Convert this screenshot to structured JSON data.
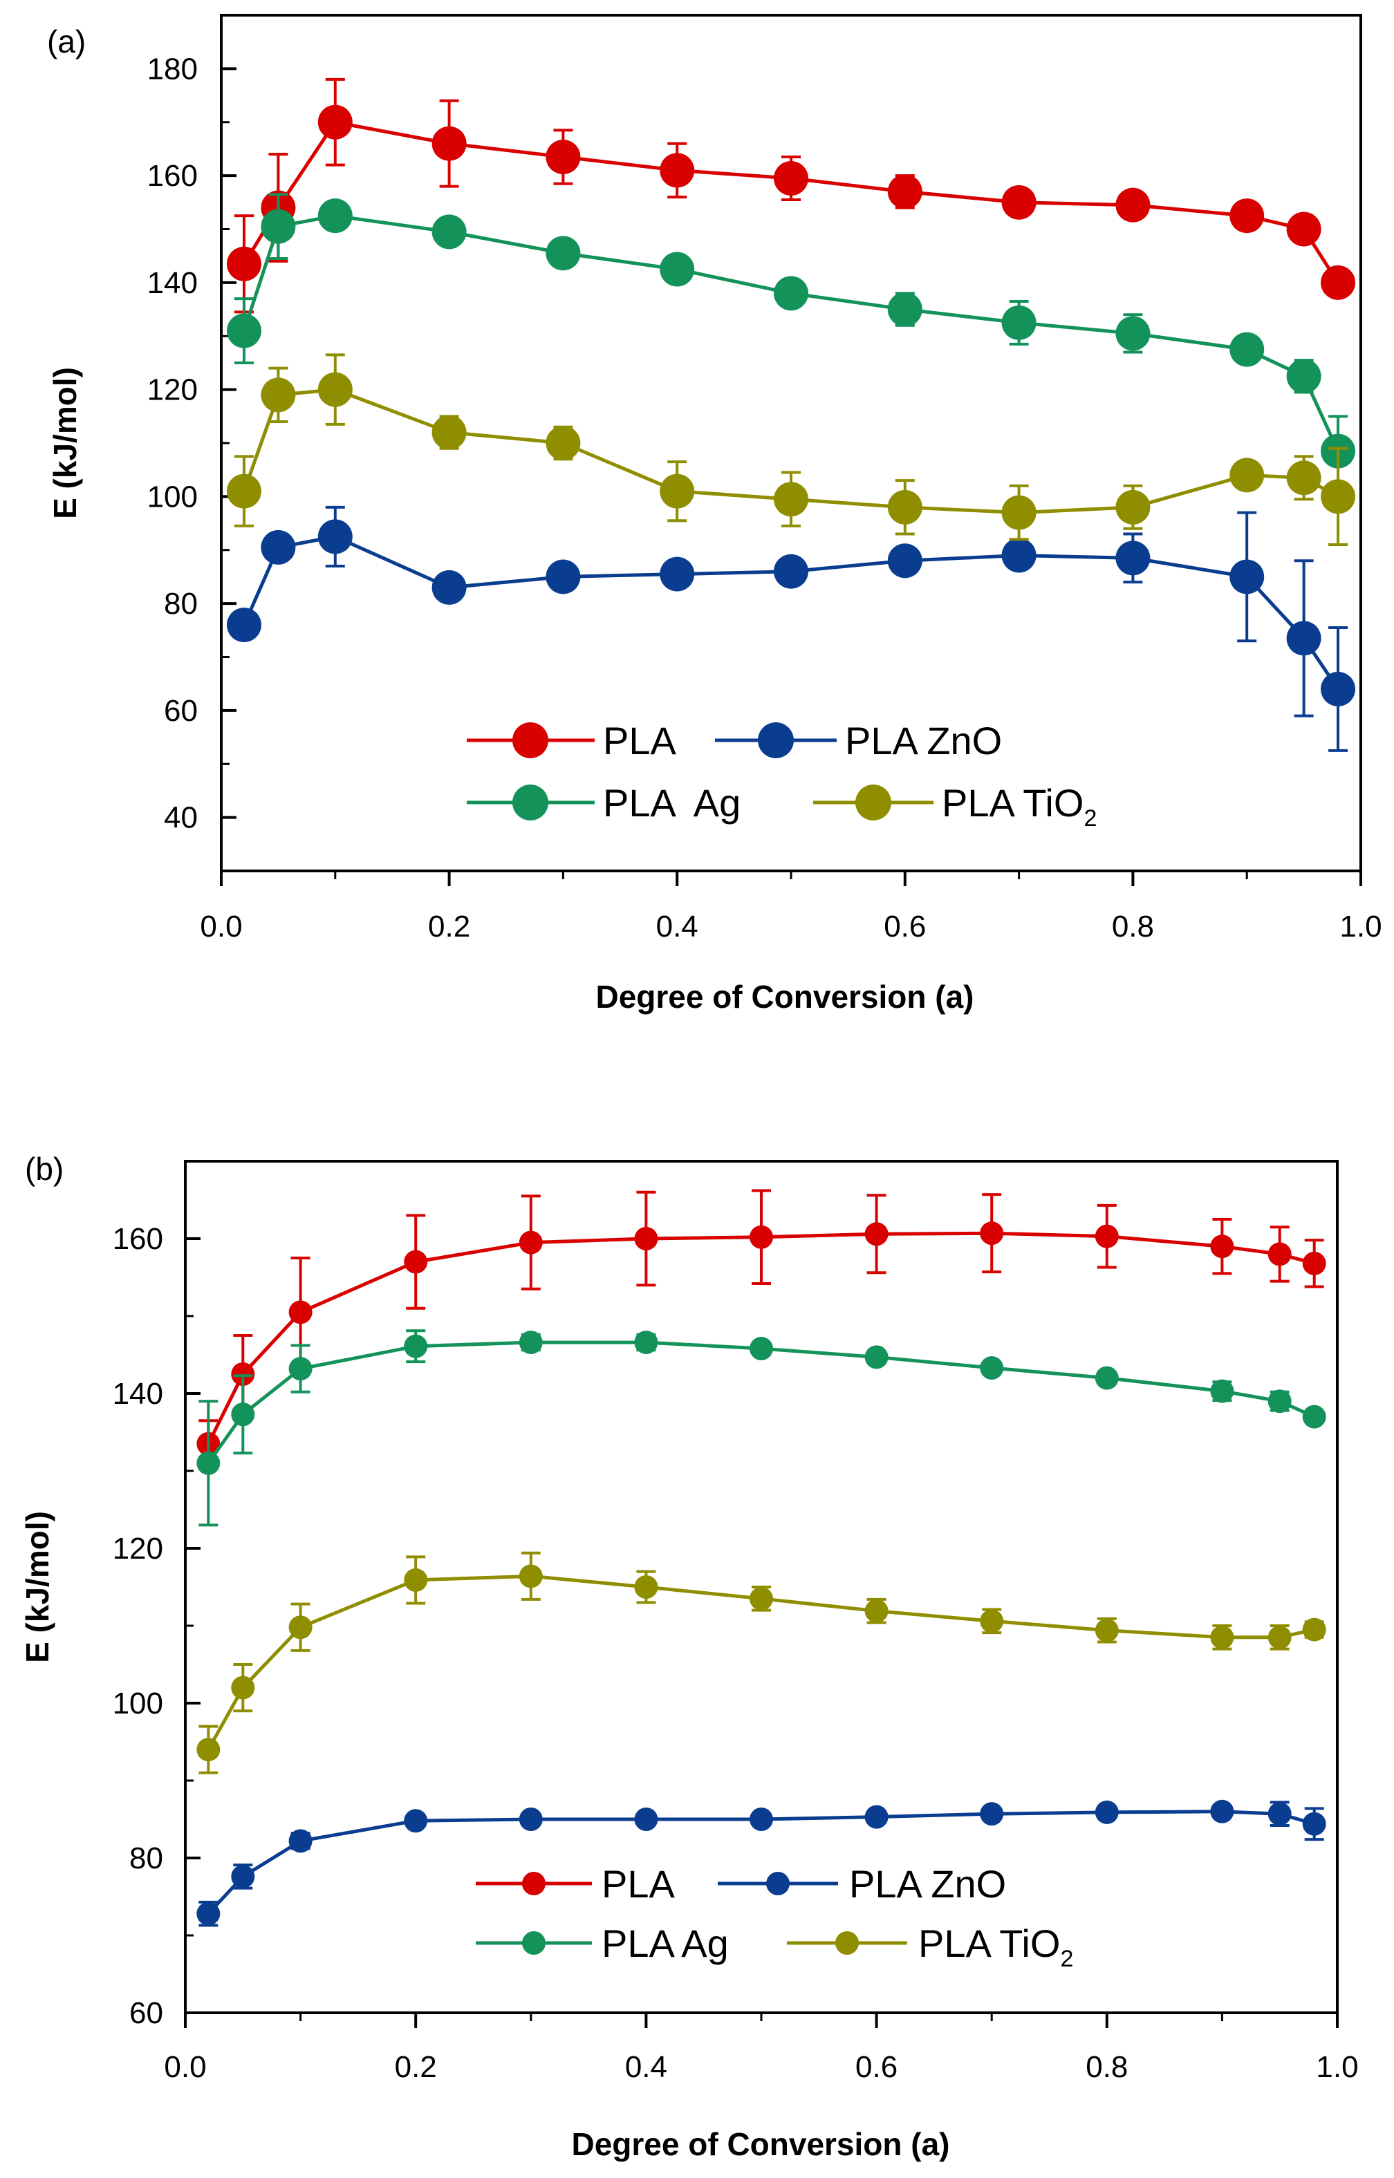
{
  "chart_data": [
    {
      "panel": "(a)",
      "type": "line",
      "xlabel": "Degree of Conversion (a)",
      "ylabel": "E (kJ/mol)",
      "xlim": [
        0.0,
        1.0
      ],
      "ylim": [
        30,
        190
      ],
      "xticks": [
        "0.0",
        "0.2",
        "0.4",
        "0.6",
        "0.8",
        "1.0"
      ],
      "yticks": [
        "40",
        "60",
        "80",
        "100",
        "120",
        "140",
        "160",
        "180"
      ],
      "x": [
        0.02,
        0.05,
        0.1,
        0.2,
        0.3,
        0.4,
        0.5,
        0.6,
        0.7,
        0.8,
        0.9,
        0.95,
        0.98
      ],
      "series": [
        {
          "name": "PLA",
          "color": "#d90000",
          "values": [
            143.5,
            154,
            170,
            166,
            163.5,
            161,
            159.5,
            157,
            155,
            154.5,
            152.5,
            150,
            140
          ],
          "errors": [
            9,
            10,
            8,
            8,
            5,
            5,
            4,
            3,
            2,
            2,
            2,
            2,
            2
          ]
        },
        {
          "name": "PLA ZnO",
          "color": "#0a3d8f",
          "values": [
            76,
            90.5,
            92.5,
            83,
            85,
            85.5,
            86,
            88,
            89,
            88.5,
            85,
            73.5,
            64
          ],
          "errors": [
            0,
            0,
            5.5,
            0,
            0,
            0,
            0,
            0,
            0,
            4.5,
            12,
            14.5,
            11.5
          ]
        },
        {
          "name": "PLA  Ag",
          "color": "#13925a",
          "values": [
            131,
            150.5,
            152.5,
            149.5,
            145.5,
            142.5,
            138,
            135,
            132.5,
            130.5,
            127.5,
            122.5,
            108.5
          ],
          "errors": [
            6,
            6,
            0,
            0,
            0,
            0,
            0,
            3,
            4,
            3.5,
            2,
            3,
            6.5
          ]
        },
        {
          "name": "PLA TiO2",
          "color": "#8f8e00",
          "values": [
            101,
            119,
            120,
            112,
            110,
            101,
            99.5,
            98,
            97,
            98,
            104,
            103.5,
            100
          ],
          "errors": [
            6.5,
            5,
            6.5,
            3,
            3,
            5.5,
            5,
            5,
            5,
            4,
            0,
            4,
            9
          ]
        }
      ],
      "legend": {
        "row1": [
          "PLA",
          "PLA ZnO"
        ],
        "row2_a": "PLA  Ag",
        "row2_b_main": "PLA TiO",
        "row2_b_sub": "2"
      }
    },
    {
      "panel": "(b)",
      "type": "line",
      "xlabel": "Degree of Conversion (a)",
      "ylabel": "E (kJ/mol)",
      "xlim": [
        0.0,
        1.0
      ],
      "ylim": [
        60,
        170
      ],
      "xticks": [
        "0.0",
        "0.2",
        "0.4",
        "0.6",
        "0.8",
        "1.0"
      ],
      "yticks": [
        "60",
        "80",
        "100",
        "120",
        "140",
        "160"
      ],
      "x": [
        0.02,
        0.05,
        0.1,
        0.2,
        0.3,
        0.4,
        0.5,
        0.6,
        0.7,
        0.8,
        0.9,
        0.95,
        0.98
      ],
      "series": [
        {
          "name": "PLA",
          "color": "#d90000",
          "values": [
            133.5,
            142.5,
            150.5,
            157,
            159.5,
            160,
            160.2,
            160.6,
            160.7,
            160.3,
            159,
            158,
            156.8
          ],
          "errors": [
            3,
            5,
            7,
            6,
            6,
            6,
            6,
            5,
            5,
            4,
            3.5,
            3.5,
            3
          ]
        },
        {
          "name": "PLA ZnO",
          "color": "#0a3d8f",
          "values": [
            72.8,
            77.6,
            82.2,
            84.8,
            85,
            85,
            85,
            85.3,
            85.7,
            85.9,
            86,
            85.7,
            84.4
          ],
          "errors": [
            1.5,
            1.5,
            1,
            0,
            0,
            0,
            0,
            0,
            0,
            0,
            0,
            1.5,
            2
          ]
        },
        {
          "name": "PLA Ag",
          "color": "#13925a",
          "values": [
            131,
            137.3,
            143.2,
            146.1,
            146.6,
            146.6,
            145.8,
            144.7,
            143.3,
            142,
            140.3,
            139,
            137
          ],
          "errors": [
            8,
            5,
            3,
            2,
            1,
            1,
            0,
            0,
            0,
            0,
            1.2,
            1.2,
            0
          ]
        },
        {
          "name": "PLA TiO2",
          "color": "#8f8e00",
          "values": [
            94,
            102,
            109.8,
            115.9,
            116.4,
            115,
            113.5,
            111.9,
            110.6,
            109.4,
            108.5,
            108.5,
            109.5
          ],
          "errors": [
            3,
            3,
            3,
            3,
            3,
            2,
            1.5,
            1.5,
            1.5,
            1.5,
            1.5,
            1.5,
            1
          ]
        }
      ],
      "legend": {
        "row1": [
          "PLA",
          "PLA ZnO"
        ],
        "row2_a": "PLA Ag",
        "row2_b_main": "PLA TiO",
        "row2_b_sub": "2"
      }
    }
  ]
}
